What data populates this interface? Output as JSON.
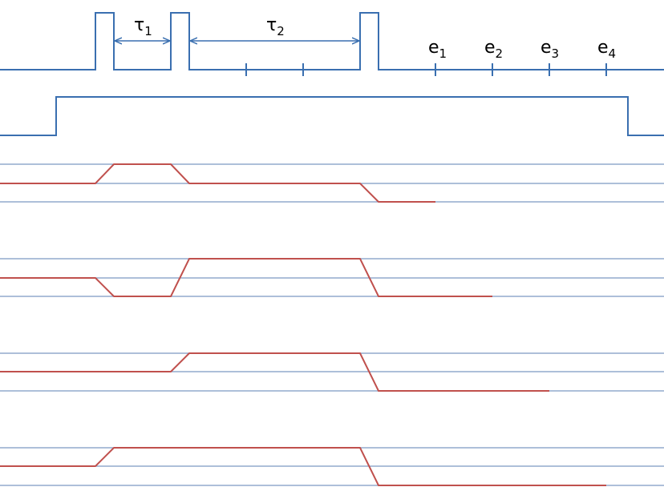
{
  "colors": {
    "pulse": "#3a6fb0",
    "guide": "#5b7fb3",
    "trace": "#c0504d",
    "text": "#000000",
    "background": "#ffffff"
  },
  "labels": {
    "tau1": {
      "base": "τ",
      "sub": "1"
    },
    "tau2": {
      "base": "τ",
      "sub": "2"
    },
    "echoes": [
      {
        "base": "e",
        "sub": "1"
      },
      {
        "base": "e",
        "sub": "2"
      },
      {
        "base": "e",
        "sub": "3"
      },
      {
        "base": "e",
        "sub": "4"
      }
    ]
  }
}
